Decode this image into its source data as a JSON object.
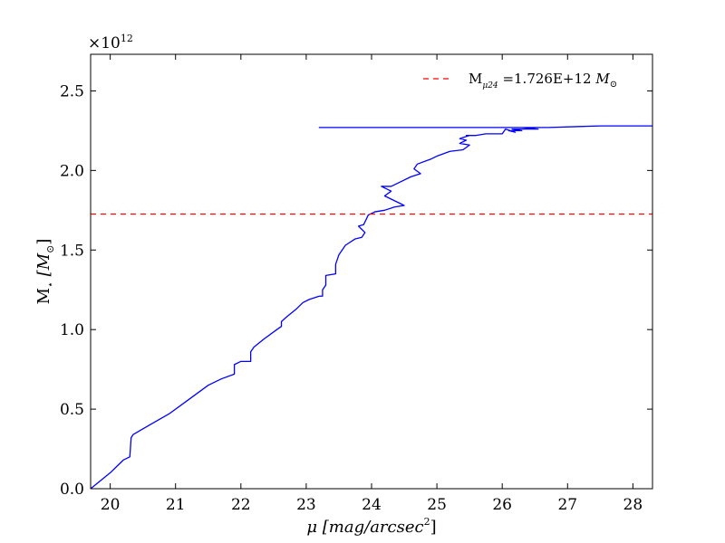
{
  "chart_data": {
    "type": "line",
    "x_range": [
      19.7,
      28.3
    ],
    "y_range": [
      0.0,
      2.73
    ],
    "y_scale_label": "×10",
    "y_scale_exponent": "12",
    "xticks": [
      {
        "value": 20,
        "label": "20"
      },
      {
        "value": 21,
        "label": "21"
      },
      {
        "value": 22,
        "label": "22"
      },
      {
        "value": 23,
        "label": "23"
      },
      {
        "value": 24,
        "label": "24"
      },
      {
        "value": 25,
        "label": "25"
      },
      {
        "value": 26,
        "label": "26"
      },
      {
        "value": 27,
        "label": "27"
      },
      {
        "value": 28,
        "label": "28"
      }
    ],
    "yticks": [
      {
        "value": 0.0,
        "label": "0.0"
      },
      {
        "value": 0.5,
        "label": "0.5"
      },
      {
        "value": 1.0,
        "label": "1.0"
      },
      {
        "value": 1.5,
        "label": "1.5"
      },
      {
        "value": 2.0,
        "label": "2.0"
      },
      {
        "value": 2.5,
        "label": "2.5"
      }
    ],
    "xlabel": {
      "mu": "μ",
      "rest": " [mag/arcsec",
      "sup": "2",
      "close": "]"
    },
    "ylabel": {
      "main": "M",
      "sub": "⋆",
      "rest": " [M",
      "sun": "⊙",
      "close": "]"
    },
    "series": [
      {
        "color": "#0000ff",
        "x": [
          19.7,
          20.0,
          20.2,
          20.3,
          20.32,
          20.35,
          20.6,
          20.9,
          21.2,
          21.5,
          21.7,
          21.9,
          21.9,
          22.0,
          22.15,
          22.15,
          22.2,
          22.35,
          22.55,
          22.62,
          22.62,
          22.7,
          22.85,
          22.95,
          23.05,
          23.2,
          23.25,
          23.25,
          23.3,
          23.3,
          23.45,
          23.45,
          23.5,
          23.6,
          23.75,
          23.85,
          23.9,
          23.8,
          23.88,
          23.95,
          24.05,
          24.2,
          24.35,
          24.5,
          24.45,
          24.35,
          24.2,
          24.3,
          24.15,
          24.3,
          24.45,
          24.6,
          24.75,
          24.65,
          24.7,
          24.9,
          25.0,
          25.2,
          25.4,
          25.5,
          25.35,
          25.45,
          25.35,
          25.5,
          25.45,
          25.6,
          25.75,
          26.0,
          26.05,
          26.2,
          26.1,
          26.3,
          26.15,
          26.4,
          26.55,
          26.3,
          23.2,
          26.7,
          27.5,
          28.3
        ],
        "y": [
          0.0,
          0.1,
          0.18,
          0.2,
          0.32,
          0.34,
          0.4,
          0.47,
          0.56,
          0.65,
          0.69,
          0.72,
          0.78,
          0.8,
          0.8,
          0.86,
          0.89,
          0.94,
          1.0,
          1.02,
          1.05,
          1.08,
          1.13,
          1.17,
          1.19,
          1.21,
          1.21,
          1.25,
          1.28,
          1.34,
          1.35,
          1.41,
          1.47,
          1.53,
          1.57,
          1.58,
          1.61,
          1.65,
          1.66,
          1.72,
          1.74,
          1.75,
          1.77,
          1.78,
          1.79,
          1.81,
          1.84,
          1.87,
          1.9,
          1.9,
          1.93,
          1.96,
          1.98,
          2.01,
          2.04,
          2.07,
          2.09,
          2.12,
          2.13,
          2.16,
          2.17,
          2.19,
          2.2,
          2.22,
          2.22,
          2.22,
          2.23,
          2.23,
          2.26,
          2.24,
          2.25,
          2.25,
          2.26,
          2.26,
          2.26,
          2.27,
          2.27,
          2.27,
          2.28,
          2.28
        ]
      },
      {
        "name": "M",
        "name_sub": "μ24",
        "name_value": " =1.726E+12 ",
        "name_unit": "M",
        "name_unit_sub": "⊙",
        "color": "#ff0000",
        "dashed": true,
        "y_constant": 1.726
      }
    ],
    "legend_position": "top-right",
    "grid": false
  }
}
